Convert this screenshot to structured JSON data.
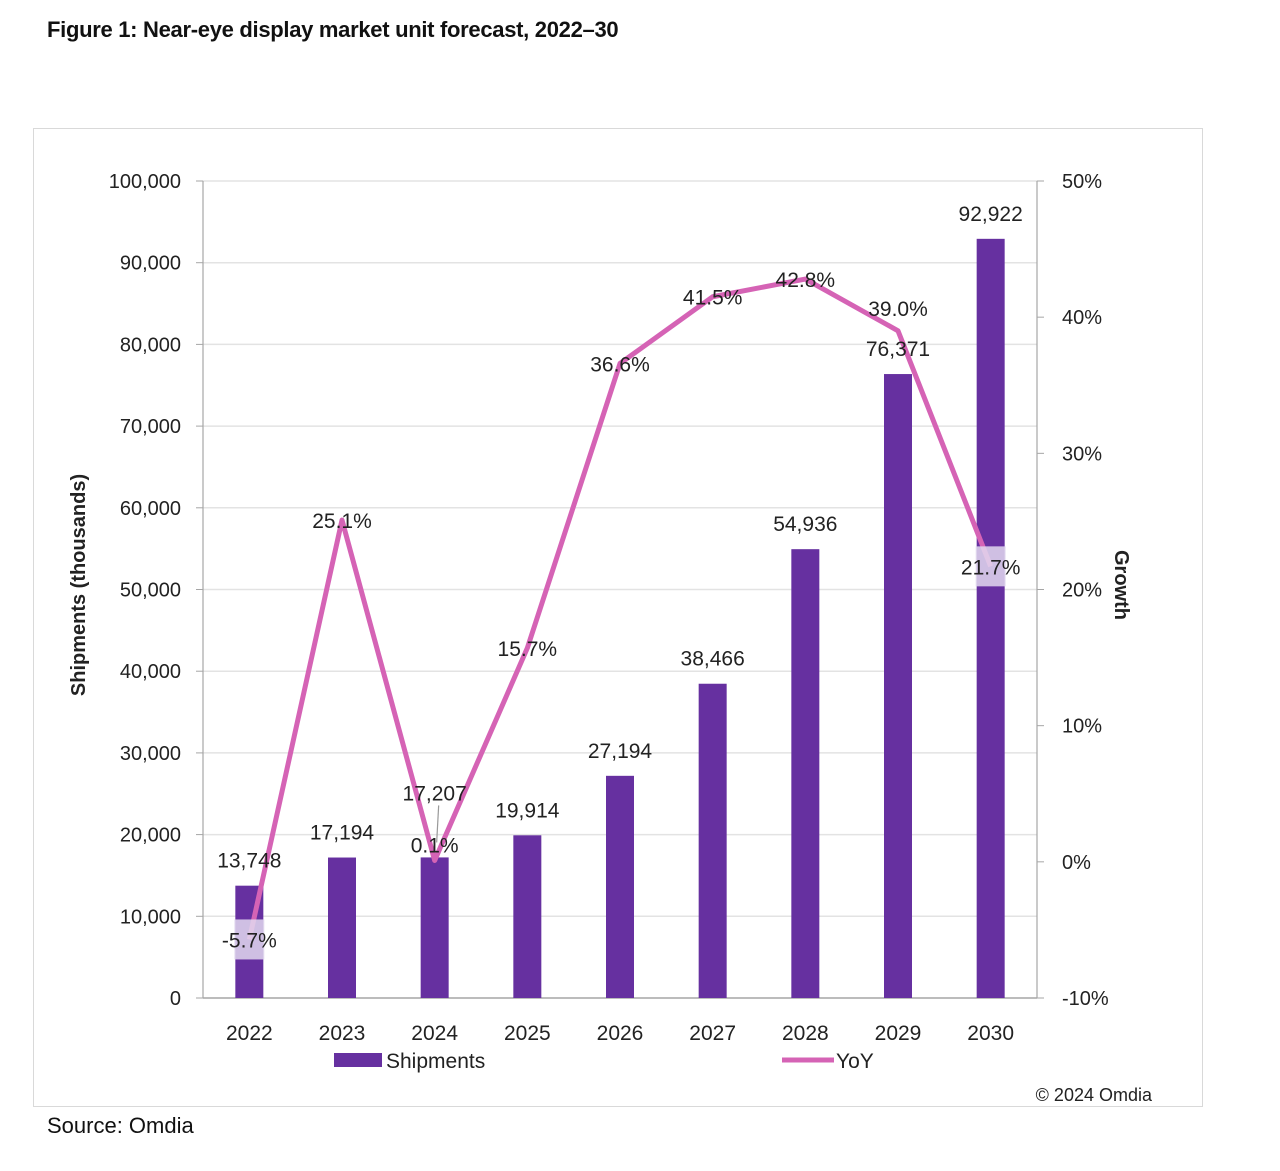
{
  "title": "Figure 1: Near-eye display market unit forecast, 2022–30",
  "source": "Source: Omdia",
  "copyright": "© 2024 Omdia",
  "colors": {
    "bars": "#6630a0",
    "line": "#d563b5",
    "grid": "#e3e3e3",
    "axis": "#a6a6a6",
    "label_highlight": "#e2d8ee"
  },
  "chart_data": {
    "type": "bar+line",
    "title": "Figure 1: Near-eye display market unit forecast, 2022–30",
    "categories": [
      "2022",
      "2023",
      "2024",
      "2025",
      "2026",
      "2027",
      "2028",
      "2029",
      "2030"
    ],
    "series": [
      {
        "name": "Shipments",
        "type": "bar",
        "axis": "left",
        "values": [
          13748,
          17194,
          17207,
          19914,
          27194,
          38466,
          54936,
          76371,
          92922
        ],
        "labels": [
          "13,748",
          "17,194",
          "17,207",
          "19,914",
          "27,194",
          "38,466",
          "54,936",
          "76,371",
          "92,922"
        ]
      },
      {
        "name": "YoY",
        "type": "line",
        "axis": "right",
        "values": [
          -5.7,
          25.1,
          0.1,
          15.7,
          36.6,
          41.5,
          42.8,
          39.0,
          21.7
        ],
        "labels": [
          "-5.7%",
          "25.1%",
          "0.1%",
          "15.7%",
          "36.6%",
          "41.5%",
          "42.8%",
          "39.0%",
          "21.7%"
        ]
      }
    ],
    "ylabel": "Shipments (thousands)",
    "y2label": "Growth",
    "ylim": [
      0,
      100000
    ],
    "y2lim": [
      -10,
      50
    ],
    "yticks": [
      "0",
      "10,000",
      "20,000",
      "30,000",
      "40,000",
      "50,000",
      "60,000",
      "70,000",
      "80,000",
      "90,000",
      "100,000"
    ],
    "y2ticks": [
      "-10%",
      "0%",
      "10%",
      "20%",
      "30%",
      "40%",
      "50%"
    ],
    "grid": true,
    "legend": "bottom"
  }
}
